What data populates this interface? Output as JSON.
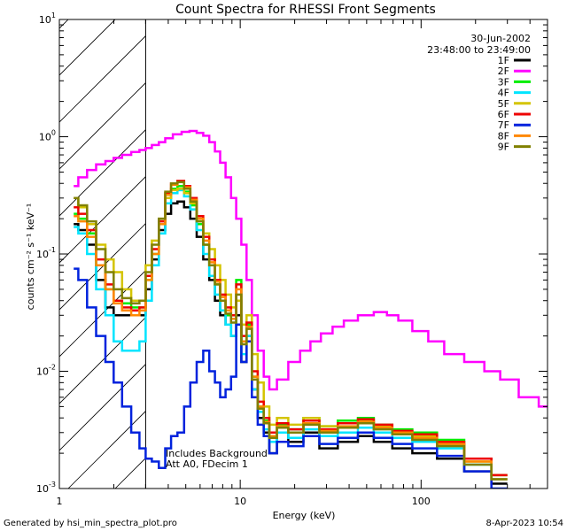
{
  "chart_data": {
    "type": "line",
    "title": "Count Spectra for RHESSI Front Segments",
    "xlabel": "Energy (keV)",
    "ylabel": "counts cm⁻² s⁻¹ keV⁻¹",
    "xscale": "log",
    "yscale": "log",
    "xlim": [
      1,
      500
    ],
    "ylim": [
      0.001,
      10
    ],
    "x_tick_labels": [
      {
        "value": 1,
        "label": "1"
      },
      {
        "value": 10,
        "label": "10"
      },
      {
        "value": 100,
        "label": "100"
      }
    ],
    "y_tick_labels": [
      {
        "value": 10,
        "label": "10",
        "exp": "1"
      },
      {
        "value": 1,
        "label": "10",
        "exp": "0"
      },
      {
        "value": 0.1,
        "label": "10",
        "exp": "-1"
      },
      {
        "value": 0.01,
        "label": "10",
        "exp": "-2"
      },
      {
        "value": 0.001,
        "label": "10",
        "exp": "-3"
      }
    ],
    "date": "30-Jun-2002",
    "time_range": "23:48:00 to 23:49:00",
    "hatched_region_xmax": 3,
    "annotation_lines": [
      "Includes Background",
      "Att A0, FDecim 1"
    ],
    "series": [
      {
        "name": "1F",
        "color": "#000000",
        "x": [
          1.2,
          1.35,
          1.5,
          1.7,
          1.9,
          2.1,
          2.35,
          2.65,
          2.9,
          3.1,
          3.4,
          3.7,
          4.0,
          4.3,
          4.7,
          5.1,
          5.5,
          6.0,
          6.5,
          7.0,
          7.5,
          8.0,
          8.6,
          9.2,
          9.8,
          10.5,
          11.2,
          12.0,
          13.0,
          14.0,
          15.0,
          17.0,
          20.0,
          25.0,
          30.0,
          40.0,
          50.0,
          60.0,
          80.0,
          100.0,
          150.0,
          200.0,
          300.0
        ],
        "y": [
          0.18,
          0.16,
          0.12,
          0.06,
          0.035,
          0.03,
          0.03,
          0.03,
          0.03,
          0.05,
          0.09,
          0.16,
          0.22,
          0.27,
          0.28,
          0.25,
          0.2,
          0.14,
          0.09,
          0.06,
          0.04,
          0.03,
          0.025,
          0.02,
          0.03,
          0.012,
          0.02,
          0.007,
          0.004,
          0.003,
          0.002,
          0.003,
          0.0025,
          0.003,
          0.0022,
          0.0025,
          0.0028,
          0.0025,
          0.0022,
          0.002,
          0.0018,
          0.0014,
          0.0011
        ]
      },
      {
        "name": "2F",
        "color": "#ff00ff",
        "x": [
          1.2,
          1.35,
          1.5,
          1.7,
          1.9,
          2.1,
          2.35,
          2.65,
          2.9,
          3.1,
          3.4,
          3.7,
          4.0,
          4.5,
          5.0,
          5.5,
          6.0,
          6.5,
          7.0,
          7.5,
          8.0,
          8.6,
          9.2,
          9.8,
          10.5,
          11.2,
          12.0,
          13.0,
          14.0,
          15.0,
          17.0,
          20.0,
          23.0,
          26.0,
          30.0,
          35.0,
          40.0,
          50.0,
          60.0,
          70.0,
          80.0,
          100.0,
          120.0,
          150.0,
          200.0,
          250.0,
          300.0,
          400.0,
          500.0
        ],
        "y": [
          0.38,
          0.45,
          0.52,
          0.58,
          0.62,
          0.66,
          0.7,
          0.74,
          0.77,
          0.8,
          0.85,
          0.9,
          0.97,
          1.05,
          1.1,
          1.12,
          1.08,
          1.02,
          0.9,
          0.75,
          0.6,
          0.45,
          0.3,
          0.2,
          0.12,
          0.06,
          0.03,
          0.015,
          0.009,
          0.007,
          0.0085,
          0.012,
          0.015,
          0.018,
          0.021,
          0.024,
          0.027,
          0.03,
          0.032,
          0.03,
          0.027,
          0.022,
          0.018,
          0.014,
          0.012,
          0.01,
          0.0085,
          0.006,
          0.005
        ]
      },
      {
        "name": "3F",
        "color": "#00ee00",
        "x": [
          1.2,
          1.35,
          1.5,
          1.7,
          1.9,
          2.1,
          2.35,
          2.65,
          2.9,
          3.1,
          3.4,
          3.7,
          4.0,
          4.3,
          4.7,
          5.1,
          5.5,
          6.0,
          6.5,
          7.0,
          7.5,
          8.0,
          8.6,
          9.2,
          9.8,
          10.5,
          11.2,
          12.0,
          13.0,
          14.0,
          15.0,
          17.0,
          20.0,
          25.0,
          30.0,
          40.0,
          50.0,
          60.0,
          80.0,
          100.0,
          150.0,
          200.0,
          300.0
        ],
        "y": [
          0.22,
          0.2,
          0.15,
          0.08,
          0.05,
          0.04,
          0.038,
          0.035,
          0.035,
          0.06,
          0.1,
          0.18,
          0.3,
          0.36,
          0.38,
          0.34,
          0.26,
          0.18,
          0.12,
          0.08,
          0.055,
          0.04,
          0.03,
          0.03,
          0.06,
          0.018,
          0.025,
          0.009,
          0.005,
          0.0038,
          0.0028,
          0.0035,
          0.0032,
          0.004,
          0.0034,
          0.0038,
          0.004,
          0.0035,
          0.0032,
          0.003,
          0.0026,
          0.0018,
          0.0013
        ]
      },
      {
        "name": "4F",
        "color": "#00e5ff",
        "x": [
          1.2,
          1.35,
          1.5,
          1.7,
          1.9,
          2.1,
          2.35,
          2.65,
          2.9,
          3.1,
          3.4,
          3.7,
          4.0,
          4.3,
          4.7,
          5.1,
          5.5,
          6.0,
          6.5,
          7.0,
          7.5,
          8.0,
          8.6,
          9.2,
          9.8,
          10.5,
          11.2,
          12.0,
          13.0,
          14.0,
          15.0,
          17.0,
          20.0,
          25.0,
          30.0,
          40.0,
          50.0,
          60.0,
          80.0,
          100.0,
          150.0,
          200.0,
          300.0
        ],
        "y": [
          0.17,
          0.15,
          0.1,
          0.05,
          0.03,
          0.018,
          0.015,
          0.015,
          0.018,
          0.04,
          0.08,
          0.15,
          0.27,
          0.33,
          0.35,
          0.31,
          0.24,
          0.16,
          0.1,
          0.065,
          0.045,
          0.033,
          0.025,
          0.02,
          0.04,
          0.014,
          0.02,
          0.007,
          0.0045,
          0.0032,
          0.0025,
          0.003,
          0.0027,
          0.0032,
          0.0028,
          0.003,
          0.0033,
          0.003,
          0.0027,
          0.0025,
          0.0022,
          0.0016,
          0.0012
        ]
      },
      {
        "name": "5F",
        "color": "#d4c400",
        "x": [
          1.2,
          1.35,
          1.5,
          1.7,
          1.9,
          2.1,
          2.35,
          2.65,
          2.9,
          3.1,
          3.4,
          3.7,
          4.0,
          4.3,
          4.7,
          5.1,
          5.5,
          6.0,
          6.5,
          7.0,
          7.5,
          8.0,
          8.6,
          9.2,
          9.8,
          10.5,
          11.2,
          12.0,
          13.0,
          14.0,
          15.0,
          17.0,
          20.0,
          25.0,
          30.0,
          40.0,
          50.0,
          60.0,
          80.0,
          100.0,
          150.0,
          200.0,
          300.0
        ],
        "y": [
          0.3,
          0.25,
          0.18,
          0.12,
          0.09,
          0.07,
          0.05,
          0.04,
          0.04,
          0.08,
          0.13,
          0.2,
          0.3,
          0.35,
          0.36,
          0.33,
          0.27,
          0.2,
          0.15,
          0.11,
          0.08,
          0.06,
          0.045,
          0.035,
          0.04,
          0.025,
          0.03,
          0.014,
          0.008,
          0.005,
          0.0035,
          0.004,
          0.0035,
          0.004,
          0.0034,
          0.0036,
          0.0038,
          0.0034,
          0.003,
          0.0028,
          0.0024,
          0.0017,
          0.0013
        ]
      },
      {
        "name": "6F",
        "color": "#ee0000",
        "x": [
          1.2,
          1.35,
          1.5,
          1.7,
          1.9,
          2.1,
          2.35,
          2.65,
          2.9,
          3.1,
          3.4,
          3.7,
          4.0,
          4.3,
          4.7,
          5.1,
          5.5,
          6.0,
          6.5,
          7.0,
          7.5,
          8.0,
          8.6,
          9.2,
          9.8,
          10.5,
          11.2,
          12.0,
          13.0,
          14.0,
          15.0,
          17.0,
          20.0,
          25.0,
          30.0,
          40.0,
          50.0,
          60.0,
          80.0,
          100.0,
          150.0,
          200.0,
          300.0
        ],
        "y": [
          0.25,
          0.22,
          0.16,
          0.09,
          0.055,
          0.04,
          0.035,
          0.033,
          0.035,
          0.065,
          0.11,
          0.19,
          0.33,
          0.4,
          0.42,
          0.38,
          0.3,
          0.21,
          0.14,
          0.09,
          0.06,
          0.045,
          0.035,
          0.03,
          0.055,
          0.02,
          0.026,
          0.01,
          0.0055,
          0.004,
          0.003,
          0.0036,
          0.0032,
          0.0038,
          0.0032,
          0.0036,
          0.0039,
          0.0035,
          0.0031,
          0.0029,
          0.0025,
          0.0018,
          0.0013
        ]
      },
      {
        "name": "7F",
        "color": "#0022dd",
        "x": [
          1.2,
          1.35,
          1.5,
          1.7,
          1.9,
          2.1,
          2.35,
          2.65,
          2.9,
          3.1,
          3.4,
          3.7,
          4.0,
          4.3,
          4.7,
          5.1,
          5.5,
          6.0,
          6.5,
          7.0,
          7.5,
          8.0,
          8.6,
          9.2,
          9.8,
          10.5,
          11.2,
          12.0,
          13.0,
          14.0,
          15.0,
          17.0,
          20.0,
          25.0,
          30.0,
          40.0,
          50.0,
          60.0,
          80.0,
          100.0,
          150.0,
          200.0,
          300.0
        ],
        "y": [
          0.075,
          0.06,
          0.035,
          0.02,
          0.012,
          0.008,
          0.005,
          0.003,
          0.0022,
          0.0018,
          0.0017,
          0.0015,
          0.0022,
          0.0028,
          0.003,
          0.005,
          0.008,
          0.012,
          0.015,
          0.01,
          0.008,
          0.006,
          0.007,
          0.009,
          0.025,
          0.012,
          0.018,
          0.006,
          0.0035,
          0.0028,
          0.002,
          0.0025,
          0.0023,
          0.0028,
          0.0024,
          0.0027,
          0.003,
          0.0027,
          0.0024,
          0.0022,
          0.0019,
          0.0014,
          0.001
        ]
      },
      {
        "name": "8F",
        "color": "#ff8800",
        "x": [
          1.2,
          1.35,
          1.5,
          1.7,
          1.9,
          2.1,
          2.35,
          2.65,
          2.9,
          3.1,
          3.4,
          3.7,
          4.0,
          4.3,
          4.7,
          5.1,
          5.5,
          6.0,
          6.5,
          7.0,
          7.5,
          8.0,
          8.6,
          9.2,
          9.8,
          10.5,
          11.2,
          12.0,
          13.0,
          14.0,
          15.0,
          17.0,
          20.0,
          25.0,
          30.0,
          40.0,
          50.0,
          60.0,
          80.0,
          100.0,
          150.0,
          200.0,
          300.0
        ],
        "y": [
          0.21,
          0.19,
          0.14,
          0.08,
          0.05,
          0.038,
          0.033,
          0.03,
          0.033,
          0.06,
          0.1,
          0.18,
          0.32,
          0.39,
          0.41,
          0.37,
          0.29,
          0.2,
          0.13,
          0.085,
          0.058,
          0.043,
          0.033,
          0.028,
          0.05,
          0.018,
          0.024,
          0.009,
          0.005,
          0.0037,
          0.0028,
          0.0034,
          0.003,
          0.0036,
          0.0031,
          0.0034,
          0.0037,
          0.0033,
          0.003,
          0.0027,
          0.0024,
          0.0017,
          0.0012
        ]
      },
      {
        "name": "9F",
        "color": "#808000",
        "x": [
          1.2,
          1.35,
          1.5,
          1.7,
          1.9,
          2.1,
          2.35,
          2.65,
          2.9,
          3.1,
          3.4,
          3.7,
          4.0,
          4.3,
          4.7,
          5.1,
          5.5,
          6.0,
          6.5,
          7.0,
          7.5,
          8.0,
          8.6,
          9.2,
          9.8,
          10.5,
          11.2,
          12.0,
          13.0,
          14.0,
          15.0,
          17.0,
          20.0,
          25.0,
          30.0,
          40.0,
          50.0,
          60.0,
          80.0,
          100.0,
          150.0,
          200.0,
          300.0
        ],
        "y": [
          0.3,
          0.26,
          0.19,
          0.11,
          0.07,
          0.05,
          0.042,
          0.038,
          0.04,
          0.07,
          0.12,
          0.2,
          0.34,
          0.4,
          0.41,
          0.36,
          0.28,
          0.19,
          0.12,
          0.08,
          0.055,
          0.04,
          0.031,
          0.026,
          0.045,
          0.017,
          0.023,
          0.0085,
          0.0048,
          0.0036,
          0.0027,
          0.0033,
          0.003,
          0.0035,
          0.003,
          0.0033,
          0.0036,
          0.0032,
          0.0029,
          0.0026,
          0.0023,
          0.0016,
          0.0012
        ]
      }
    ]
  },
  "footer": {
    "generated_by": "Generated by hsi_min_spectra_plot.pro",
    "timestamp": "8-Apr-2023 10:54"
  }
}
